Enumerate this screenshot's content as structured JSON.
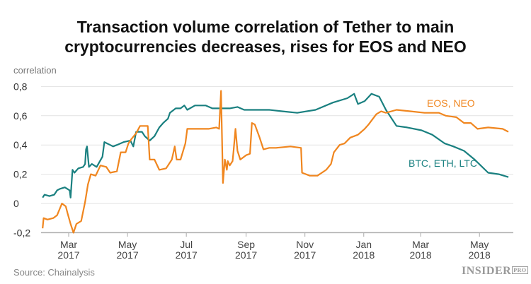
{
  "chart_data": {
    "type": "line",
    "title": "Transaction volume correlation of Tether to main cryptocurrencies decreases, rises for EOS and NEO",
    "title_lines": [
      "Transaction volume correlation of Tether to main",
      "cryptocurrencies decreases, rises for EOS and NEO"
    ],
    "ylabel": "correlation",
    "xlabel": "",
    "ylim": [
      -0.2,
      0.8
    ],
    "yticks": [
      {
        "v": 0.8,
        "label": "0,8"
      },
      {
        "v": 0.6,
        "label": "0,6"
      },
      {
        "v": 0.4,
        "label": "0,4"
      },
      {
        "v": 0.2,
        "label": "0,2"
      },
      {
        "v": 0,
        "label": "0"
      },
      {
        "v": -0.2,
        "label": "-0,2"
      }
    ],
    "xticks": [
      {
        "date": "2017-03-01",
        "month": "Mar",
        "year": "2017"
      },
      {
        "date": "2017-05-01",
        "month": "May",
        "year": "2017"
      },
      {
        "date": "2017-07-01",
        "month": "Jul",
        "year": "2017"
      },
      {
        "date": "2017-09-01",
        "month": "Sep",
        "year": "2017"
      },
      {
        "date": "2017-11-01",
        "month": "Nov",
        "year": "2017"
      },
      {
        "date": "2018-01-01",
        "month": "Jan",
        "year": "2018"
      },
      {
        "date": "2018-03-01",
        "month": "Mar",
        "year": "2018"
      },
      {
        "date": "2018-05-01",
        "month": "May",
        "year": "2018"
      }
    ],
    "grid": true,
    "series": [
      {
        "name": "BTC, ETH, LTC",
        "color": "#1a8080",
        "points": [
          [
            "2017-02-02",
            0.04
          ],
          [
            "2017-02-04",
            0.06
          ],
          [
            "2017-02-09",
            0.05
          ],
          [
            "2017-02-14",
            0.06
          ],
          [
            "2017-02-17",
            0.09
          ],
          [
            "2017-02-20",
            0.1
          ],
          [
            "2017-02-25",
            0.11
          ],
          [
            "2017-03-02",
            0.09
          ],
          [
            "2017-03-03",
            0.04
          ],
          [
            "2017-03-05",
            0.23
          ],
          [
            "2017-03-07",
            0.21
          ],
          [
            "2017-03-11",
            0.24
          ],
          [
            "2017-03-16",
            0.25
          ],
          [
            "2017-03-18",
            0.27
          ],
          [
            "2017-03-19",
            0.37
          ],
          [
            "2017-03-20",
            0.39
          ],
          [
            "2017-03-22",
            0.25
          ],
          [
            "2017-03-25",
            0.27
          ],
          [
            "2017-03-30",
            0.25
          ],
          [
            "2017-04-05",
            0.32
          ],
          [
            "2017-04-07",
            0.42
          ],
          [
            "2017-04-13",
            0.4
          ],
          [
            "2017-04-16",
            0.39
          ],
          [
            "2017-04-20",
            0.4
          ],
          [
            "2017-04-27",
            0.42
          ],
          [
            "2017-05-04",
            0.43
          ],
          [
            "2017-05-07",
            0.39
          ],
          [
            "2017-05-10",
            0.49
          ],
          [
            "2017-05-16",
            0.49
          ],
          [
            "2017-05-19",
            0.46
          ],
          [
            "2017-05-24",
            0.43
          ],
          [
            "2017-05-29",
            0.46
          ],
          [
            "2017-06-03",
            0.52
          ],
          [
            "2017-06-07",
            0.55
          ],
          [
            "2017-06-12",
            0.58
          ],
          [
            "2017-06-14",
            0.62
          ],
          [
            "2017-06-20",
            0.65
          ],
          [
            "2017-06-25",
            0.65
          ],
          [
            "2017-06-29",
            0.67
          ],
          [
            "2017-07-02",
            0.64
          ],
          [
            "2017-07-10",
            0.67
          ],
          [
            "2017-07-21",
            0.67
          ],
          [
            "2017-07-28",
            0.65
          ],
          [
            "2017-08-08",
            0.65
          ],
          [
            "2017-08-15",
            0.65
          ],
          [
            "2017-08-23",
            0.66
          ],
          [
            "2017-08-30",
            0.64
          ],
          [
            "2017-09-10",
            0.64
          ],
          [
            "2017-09-17",
            0.64
          ],
          [
            "2017-09-25",
            0.64
          ],
          [
            "2017-10-09",
            0.63
          ],
          [
            "2017-10-24",
            0.62
          ],
          [
            "2017-11-12",
            0.64
          ],
          [
            "2017-11-30",
            0.69
          ],
          [
            "2017-12-15",
            0.72
          ],
          [
            "2017-12-22",
            0.75
          ],
          [
            "2017-12-26",
            0.68
          ],
          [
            "2018-01-02",
            0.7
          ],
          [
            "2018-01-09",
            0.75
          ],
          [
            "2018-01-17",
            0.73
          ],
          [
            "2018-01-24",
            0.64
          ],
          [
            "2018-02-04",
            0.53
          ],
          [
            "2018-02-15",
            0.52
          ],
          [
            "2018-03-02",
            0.5
          ],
          [
            "2018-03-13",
            0.47
          ],
          [
            "2018-03-26",
            0.41
          ],
          [
            "2018-04-04",
            0.39
          ],
          [
            "2018-04-15",
            0.36
          ],
          [
            "2018-04-26",
            0.3
          ],
          [
            "2018-05-10",
            0.21
          ],
          [
            "2018-05-21",
            0.2
          ],
          [
            "2018-05-31",
            0.18
          ]
        ]
      },
      {
        "name": "EOS, NEO",
        "color": "#f0861f",
        "points": [
          [
            "2017-02-02",
            -0.17
          ],
          [
            "2017-02-03",
            -0.1
          ],
          [
            "2017-02-07",
            -0.11
          ],
          [
            "2017-02-13",
            -0.1
          ],
          [
            "2017-02-17",
            -0.08
          ],
          [
            "2017-02-22",
            0.0
          ],
          [
            "2017-02-26",
            -0.02
          ],
          [
            "2017-02-28",
            -0.07
          ],
          [
            "2017-03-03",
            -0.14
          ],
          [
            "2017-03-06",
            -0.2
          ],
          [
            "2017-03-09",
            -0.14
          ],
          [
            "2017-03-14",
            -0.12
          ],
          [
            "2017-03-18",
            0.01
          ],
          [
            "2017-03-21",
            0.13
          ],
          [
            "2017-03-24",
            0.2
          ],
          [
            "2017-03-29",
            0.19
          ],
          [
            "2017-04-03",
            0.26
          ],
          [
            "2017-04-09",
            0.25
          ],
          [
            "2017-04-13",
            0.21
          ],
          [
            "2017-04-20",
            0.22
          ],
          [
            "2017-04-24",
            0.35
          ],
          [
            "2017-04-29",
            0.35
          ],
          [
            "2017-05-02",
            0.41
          ],
          [
            "2017-05-05",
            0.44
          ],
          [
            "2017-05-10",
            0.48
          ],
          [
            "2017-05-14",
            0.53
          ],
          [
            "2017-05-22",
            0.53
          ],
          [
            "2017-05-24",
            0.3
          ],
          [
            "2017-05-29",
            0.3
          ],
          [
            "2017-06-03",
            0.23
          ],
          [
            "2017-06-10",
            0.24
          ],
          [
            "2017-06-16",
            0.3
          ],
          [
            "2017-06-19",
            0.39
          ],
          [
            "2017-06-21",
            0.3
          ],
          [
            "2017-06-25",
            0.3
          ],
          [
            "2017-06-30",
            0.41
          ],
          [
            "2017-07-02",
            0.51
          ],
          [
            "2017-07-17",
            0.51
          ],
          [
            "2017-07-24",
            0.51
          ],
          [
            "2017-08-01",
            0.52
          ],
          [
            "2017-08-04",
            0.51
          ],
          [
            "2017-08-06",
            0.77
          ],
          [
            "2017-08-08",
            0.14
          ],
          [
            "2017-08-10",
            0.3
          ],
          [
            "2017-08-12",
            0.23
          ],
          [
            "2017-08-13",
            0.29
          ],
          [
            "2017-08-15",
            0.26
          ],
          [
            "2017-08-18",
            0.29
          ],
          [
            "2017-08-19",
            0.36
          ],
          [
            "2017-08-21",
            0.51
          ],
          [
            "2017-08-23",
            0.36
          ],
          [
            "2017-08-26",
            0.3
          ],
          [
            "2017-09-01",
            0.33
          ],
          [
            "2017-09-05",
            0.34
          ],
          [
            "2017-09-07",
            0.55
          ],
          [
            "2017-09-10",
            0.54
          ],
          [
            "2017-09-15",
            0.45
          ],
          [
            "2017-09-19",
            0.37
          ],
          [
            "2017-09-25",
            0.38
          ],
          [
            "2017-10-02",
            0.38
          ],
          [
            "2017-10-17",
            0.39
          ],
          [
            "2017-10-28",
            0.38
          ],
          [
            "2017-10-29",
            0.21
          ],
          [
            "2017-11-06",
            0.19
          ],
          [
            "2017-11-14",
            0.19
          ],
          [
            "2017-11-23",
            0.23
          ],
          [
            "2017-11-28",
            0.27
          ],
          [
            "2017-12-01",
            0.35
          ],
          [
            "2017-12-07",
            0.4
          ],
          [
            "2017-12-12",
            0.41
          ],
          [
            "2017-12-18",
            0.45
          ],
          [
            "2017-12-26",
            0.47
          ],
          [
            "2018-01-02",
            0.51
          ],
          [
            "2018-01-06",
            0.54
          ],
          [
            "2018-01-14",
            0.61
          ],
          [
            "2018-01-19",
            0.63
          ],
          [
            "2018-01-24",
            0.62
          ],
          [
            "2018-02-04",
            0.64
          ],
          [
            "2018-02-19",
            0.63
          ],
          [
            "2018-03-05",
            0.62
          ],
          [
            "2018-03-20",
            0.62
          ],
          [
            "2018-03-27",
            0.6
          ],
          [
            "2018-04-07",
            0.59
          ],
          [
            "2018-04-15",
            0.55
          ],
          [
            "2018-04-22",
            0.55
          ],
          [
            "2018-04-29",
            0.51
          ],
          [
            "2018-05-10",
            0.52
          ],
          [
            "2018-05-25",
            0.51
          ],
          [
            "2018-05-31",
            0.49
          ]
        ]
      }
    ]
  },
  "footer": {
    "source": "Source: Chainalysis",
    "logo_text": "INSIDER",
    "logo_suffix": "PRO"
  }
}
